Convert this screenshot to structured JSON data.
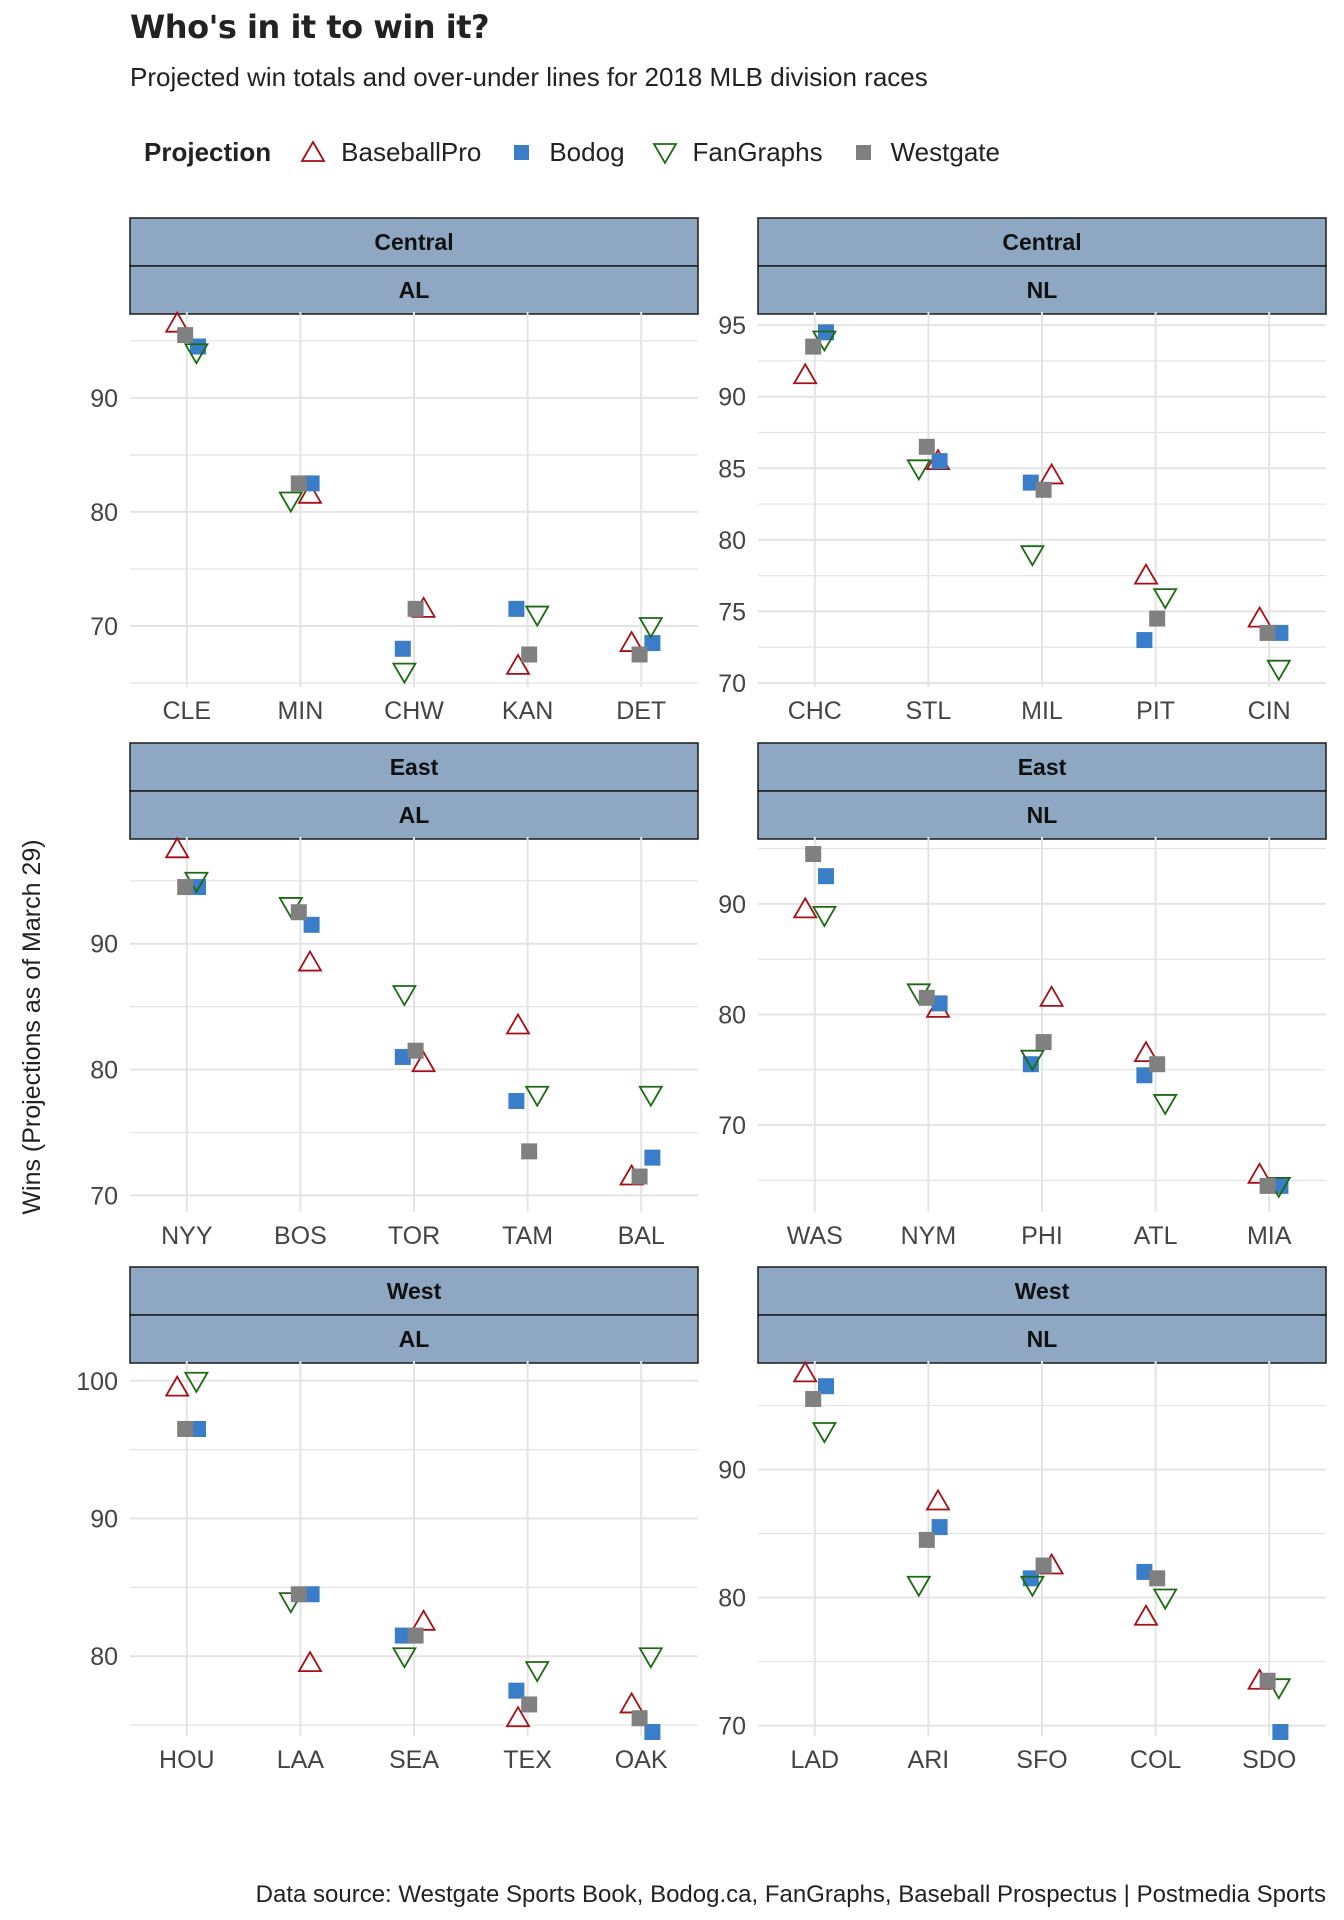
{
  "title": "Who's in it to win it?",
  "subtitle": "Projected win totals and over-under lines for 2018 MLB division races",
  "caption": "Data source: Westgate Sports Book, Bodog.ca, FanGraphs, Baseball Prospectus  |  Postmedia Sports",
  "legend": {
    "title": "Projection",
    "items": [
      {
        "label": "BaseballPro",
        "shape": "triangle-up-open",
        "color": "#a50f15"
      },
      {
        "label": "Bodog",
        "shape": "square",
        "color": "#3a7dc9"
      },
      {
        "label": "FanGraphs",
        "shape": "triangle-down-open",
        "color": "#1b6b11"
      },
      {
        "label": "Westgate",
        "shape": "square",
        "color": "#808080"
      }
    ]
  },
  "colors": {
    "strip_fill": "#8ea7c3",
    "grid": "#e4e4e4",
    "BaseballPro": "#a50f15",
    "Bodog": "#3a7dc9",
    "FanGraphs": "#1b6b11",
    "Westgate": "#808080"
  },
  "chart_data": {
    "type": "scatter",
    "ylabel": "Wins (Projections as of March 29)",
    "series_names": [
      "BaseballPro",
      "Bodog",
      "FanGraphs",
      "Westgate"
    ],
    "panels": [
      {
        "division": "Central",
        "league": "AL",
        "yticks": [
          70,
          80,
          90
        ],
        "ylim": [
          65,
          97
        ],
        "teams": [
          {
            "team": "CLE",
            "BaseballPro": 96.5,
            "Bodog": 94.5,
            "FanGraphs": 94,
            "Westgate": 95.5
          },
          {
            "team": "MIN",
            "BaseballPro": 81.5,
            "Bodog": 82.5,
            "FanGraphs": 81,
            "Westgate": 82.5
          },
          {
            "team": "CHW",
            "BaseballPro": 71.5,
            "Bodog": 68,
            "FanGraphs": 66,
            "Westgate": 71.5
          },
          {
            "team": "KAN",
            "BaseballPro": 66.5,
            "Bodog": 71.5,
            "FanGraphs": 71,
            "Westgate": 67.5
          },
          {
            "team": "DET",
            "BaseballPro": 68.5,
            "Bodog": 68.5,
            "FanGraphs": 70,
            "Westgate": 67.5
          }
        ]
      },
      {
        "division": "Central",
        "league": "NL",
        "yticks": [
          70,
          75,
          80,
          85,
          90,
          95
        ],
        "ylim": [
          70,
          95.5
        ],
        "teams": [
          {
            "team": "CHC",
            "BaseballPro": 91.5,
            "Bodog": 94.5,
            "FanGraphs": 94,
            "Westgate": 93.5
          },
          {
            "team": "STL",
            "BaseballPro": 85.5,
            "Bodog": 85.5,
            "FanGraphs": 85,
            "Westgate": 86.5
          },
          {
            "team": "MIL",
            "BaseballPro": 84.5,
            "Bodog": 84,
            "FanGraphs": 79,
            "Westgate": 83.5
          },
          {
            "team": "PIT",
            "BaseballPro": 77.5,
            "Bodog": 73,
            "FanGraphs": 76,
            "Westgate": 74.5
          },
          {
            "team": "CIN",
            "BaseballPro": 74.5,
            "Bodog": 73.5,
            "FanGraphs": 71,
            "Westgate": 73.5
          }
        ]
      },
      {
        "division": "East",
        "league": "AL",
        "yticks": [
          70,
          80,
          90
        ],
        "ylim": [
          69,
          98
        ],
        "teams": [
          {
            "team": "NYY",
            "BaseballPro": 97.5,
            "Bodog": 94.5,
            "FanGraphs": 95,
            "Westgate": 94.5
          },
          {
            "team": "BOS",
            "BaseballPro": 88.5,
            "Bodog": 91.5,
            "FanGraphs": 93,
            "Westgate": 92.5
          },
          {
            "team": "TOR",
            "BaseballPro": 80.5,
            "Bodog": 81,
            "FanGraphs": 86,
            "Westgate": 81.5
          },
          {
            "team": "TAM",
            "BaseballPro": 83.5,
            "Bodog": 77.5,
            "FanGraphs": 78,
            "Westgate": 73.5
          },
          {
            "team": "BAL",
            "BaseballPro": 71.5,
            "Bodog": 73,
            "FanGraphs": 78,
            "Westgate": 71.5
          }
        ]
      },
      {
        "division": "East",
        "league": "NL",
        "yticks": [
          70,
          80,
          90
        ],
        "ylim": [
          62.5,
          95.5
        ],
        "teams": [
          {
            "team": "WAS",
            "BaseballPro": 89.5,
            "Bodog": 92.5,
            "FanGraphs": 89,
            "Westgate": 94.5
          },
          {
            "team": "NYM",
            "BaseballPro": 80.5,
            "Bodog": 81,
            "FanGraphs": 82,
            "Westgate": 81.5
          },
          {
            "team": "PHI",
            "BaseballPro": 81.5,
            "Bodog": 75.5,
            "FanGraphs": 76,
            "Westgate": 77.5
          },
          {
            "team": "ATL",
            "BaseballPro": 76.5,
            "Bodog": 74.5,
            "FanGraphs": 72,
            "Westgate": 75.5
          },
          {
            "team": "MIA",
            "BaseballPro": 65.5,
            "Bodog": 64.5,
            "FanGraphs": 64.5,
            "Westgate": 64.5
          }
        ]
      },
      {
        "division": "West",
        "league": "AL",
        "yticks": [
          80,
          90,
          100
        ],
        "ylim": [
          74.5,
          101
        ],
        "teams": [
          {
            "team": "HOU",
            "BaseballPro": 99.5,
            "Bodog": 96.5,
            "FanGraphs": 100,
            "Westgate": 96.5
          },
          {
            "team": "LAA",
            "BaseballPro": 79.5,
            "Bodog": 84.5,
            "FanGraphs": 84,
            "Westgate": 84.5
          },
          {
            "team": "SEA",
            "BaseballPro": 82.5,
            "Bodog": 81.5,
            "FanGraphs": 80,
            "Westgate": 81.5
          },
          {
            "team": "TEX",
            "BaseballPro": 75.5,
            "Bodog": 77.5,
            "FanGraphs": 79,
            "Westgate": 76.5
          },
          {
            "team": "OAK",
            "BaseballPro": 76.5,
            "Bodog": 74.5,
            "FanGraphs": 80,
            "Westgate": 75.5
          }
        ]
      },
      {
        "division": "West",
        "league": "NL",
        "yticks": [
          70,
          80,
          90
        ],
        "ylim": [
          69.5,
          98
        ],
        "teams": [
          {
            "team": "LAD",
            "BaseballPro": 97.5,
            "Bodog": 96.5,
            "FanGraphs": 93,
            "Westgate": 95.5
          },
          {
            "team": "ARI",
            "BaseballPro": 87.5,
            "Bodog": 85.5,
            "FanGraphs": 81,
            "Westgate": 84.5
          },
          {
            "team": "SFO",
            "BaseballPro": 82.5,
            "Bodog": 81.5,
            "FanGraphs": 81,
            "Westgate": 82.5
          },
          {
            "team": "COL",
            "BaseballPro": 78.5,
            "Bodog": 82,
            "FanGraphs": 80,
            "Westgate": 81.5
          },
          {
            "team": "SDO",
            "BaseballPro": 73.5,
            "Bodog": 69.5,
            "FanGraphs": 73,
            "Westgate": 73.5
          }
        ]
      }
    ]
  }
}
